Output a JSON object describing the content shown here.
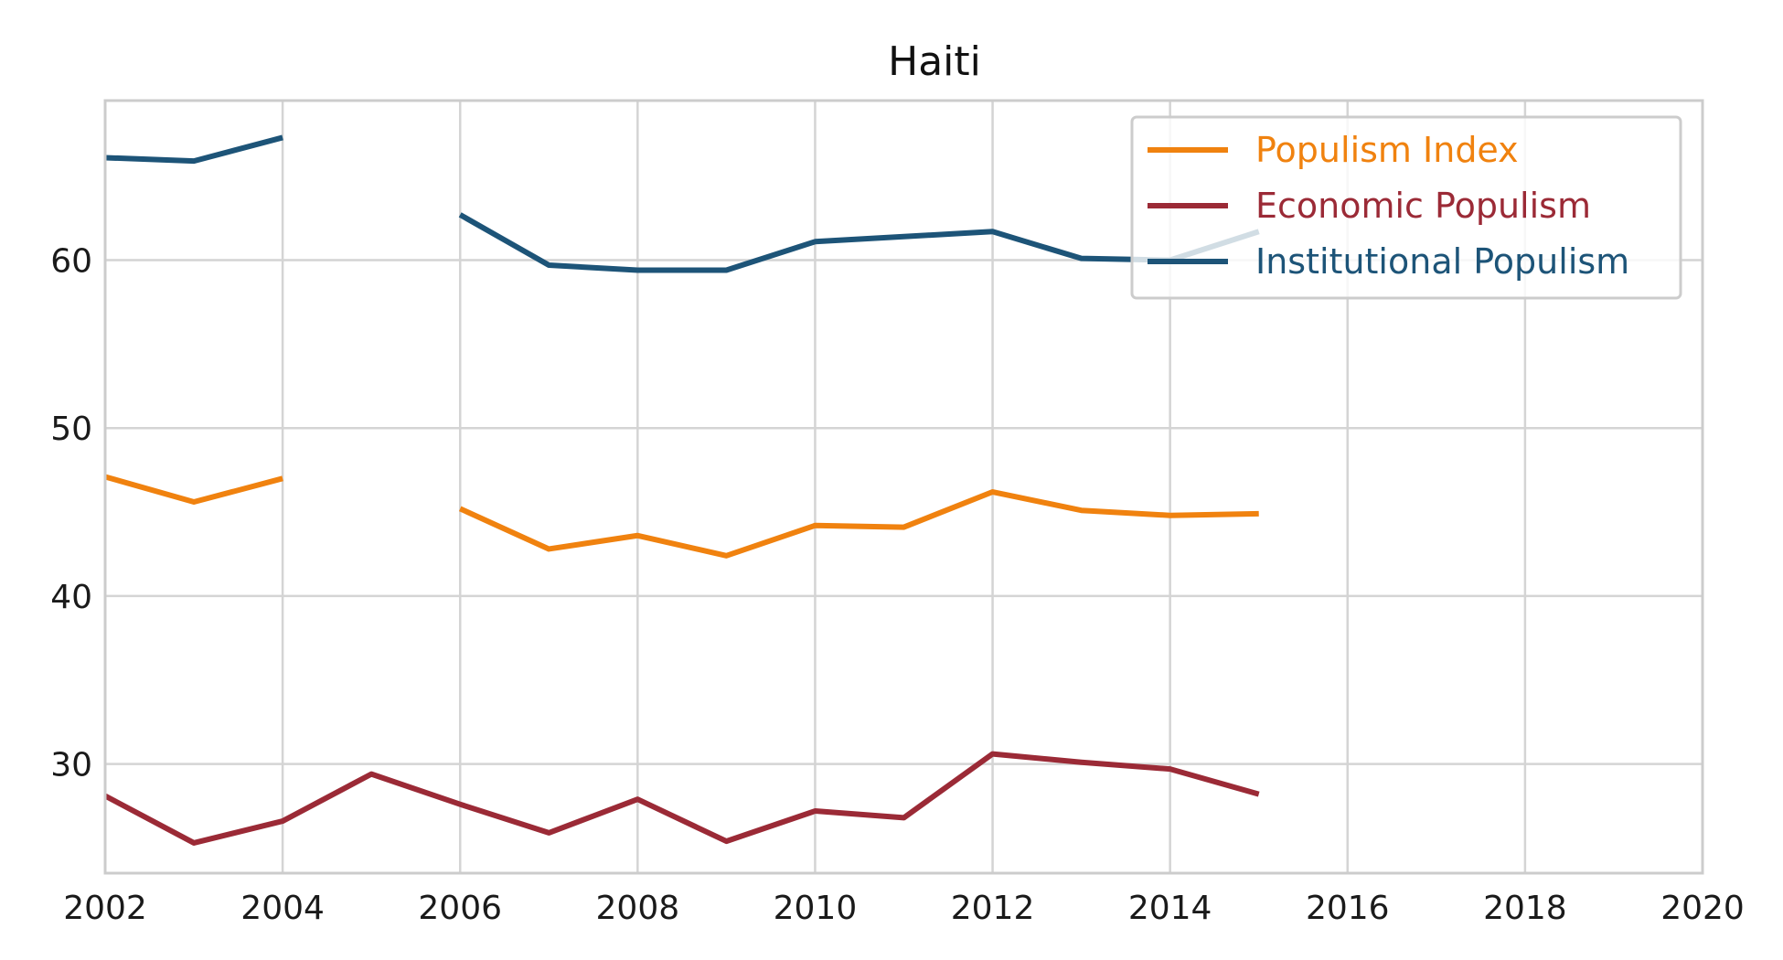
{
  "chart_data": {
    "type": "line",
    "title": "Haiti",
    "xlabel": "",
    "ylabel": "",
    "xlim": [
      2002,
      2020
    ],
    "ylim": [
      23.5,
      69.5
    ],
    "x_ticks": [
      2002,
      2004,
      2006,
      2008,
      2010,
      2012,
      2014,
      2016,
      2018,
      2020
    ],
    "y_ticks": [
      30,
      40,
      50,
      60
    ],
    "grid": true,
    "legend_position": "top-right",
    "x": [
      2002,
      2003,
      2004,
      2005,
      2006,
      2007,
      2008,
      2009,
      2010,
      2011,
      2012,
      2013,
      2014,
      2015
    ],
    "series": [
      {
        "name": "Populism Index",
        "color": "#f0820f",
        "values": [
          47.1,
          45.6,
          47.0,
          null,
          45.2,
          42.8,
          43.6,
          42.4,
          44.2,
          44.1,
          46.2,
          45.1,
          44.8,
          44.9
        ]
      },
      {
        "name": "Economic Populism",
        "color": "#9b2a36",
        "values": [
          28.1,
          25.3,
          26.6,
          29.4,
          27.6,
          25.9,
          27.9,
          25.4,
          27.2,
          26.8,
          30.6,
          30.1,
          29.7,
          28.2
        ]
      },
      {
        "name": "Institutional Populism",
        "color": "#1d5478",
        "values": [
          66.1,
          65.9,
          67.3,
          null,
          62.7,
          59.7,
          59.4,
          59.4,
          61.1,
          61.4,
          61.7,
          60.1,
          60.0,
          61.7
        ]
      }
    ]
  }
}
